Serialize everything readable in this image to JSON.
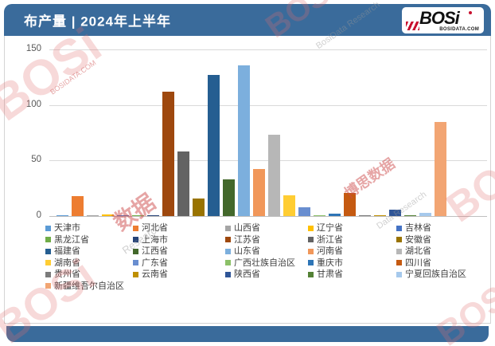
{
  "header": {
    "title": "布产量 | 2024年上半年"
  },
  "logo": {
    "text": "BOSi",
    "domain": "BOSIDATA.COM"
  },
  "chart_data": {
    "type": "bar",
    "title": "布产量 | 2024年上半年",
    "xlabel": "",
    "ylabel": "",
    "ylim": [
      0,
      150
    ],
    "yticks": [
      0,
      50,
      100,
      150
    ],
    "grid": true,
    "legend_position": "bottom",
    "series": [
      {
        "name": "天津市",
        "value": 1,
        "color": "#5B9BD5"
      },
      {
        "name": "河北省",
        "value": 18,
        "color": "#ED7D31"
      },
      {
        "name": "山西省",
        "value": 0.5,
        "color": "#A5A5A5"
      },
      {
        "name": "辽宁省",
        "value": 1.5,
        "color": "#FFC000"
      },
      {
        "name": "吉林省",
        "value": 1,
        "color": "#4472C4"
      },
      {
        "name": "黑龙江省",
        "value": 0.5,
        "color": "#70AD47"
      },
      {
        "name": "上海市",
        "value": 1,
        "color": "#264478"
      },
      {
        "name": "江苏省",
        "value": 112,
        "color": "#9E480E"
      },
      {
        "name": "浙江省",
        "value": 58,
        "color": "#636363"
      },
      {
        "name": "安徽省",
        "value": 16,
        "color": "#997300"
      },
      {
        "name": "福建省",
        "value": 127,
        "color": "#255E91"
      },
      {
        "name": "江西省",
        "value": 33,
        "color": "#43682B"
      },
      {
        "name": "山东省",
        "value": 136,
        "color": "#7CAFDD"
      },
      {
        "name": "河南省",
        "value": 42,
        "color": "#F1975A"
      },
      {
        "name": "湖北省",
        "value": 73,
        "color": "#B7B7B7"
      },
      {
        "name": "湖南省",
        "value": 19,
        "color": "#FFCD33"
      },
      {
        "name": "广东省",
        "value": 8,
        "color": "#698ED0"
      },
      {
        "name": "广西壮族自治区",
        "value": 1,
        "color": "#8CC168"
      },
      {
        "name": "重庆市",
        "value": 2,
        "color": "#2E75B6"
      },
      {
        "name": "四川省",
        "value": 21,
        "color": "#C55A11"
      },
      {
        "name": "贵州省",
        "value": 1,
        "color": "#7B7B7B"
      },
      {
        "name": "云南省",
        "value": 1,
        "color": "#BF9000"
      },
      {
        "name": "陕西省",
        "value": 6,
        "color": "#2F5597"
      },
      {
        "name": "甘肃省",
        "value": 0.5,
        "color": "#538135"
      },
      {
        "name": "宁夏回族自治区",
        "value": 3,
        "color": "#A6C9EC"
      },
      {
        "name": "新疆维吾尔自治区",
        "value": 85,
        "color": "#F2A573"
      }
    ]
  },
  "watermarks": {
    "brand": "BOSi",
    "brand_cn": "博思数据",
    "research": "BosiData Research",
    "research_short": "Research",
    "data_research": "Data Research",
    "data_cn": "数据",
    "domain": "BOSIDATA.COM"
  },
  "colors": {
    "header_bg": "#3A6B9B",
    "footer_bg": "#3A6B9B",
    "logo_red": "#C8102E",
    "gridline": "#D9D9D9",
    "tick_text": "#595959",
    "legend_text": "#3F3F3F"
  }
}
